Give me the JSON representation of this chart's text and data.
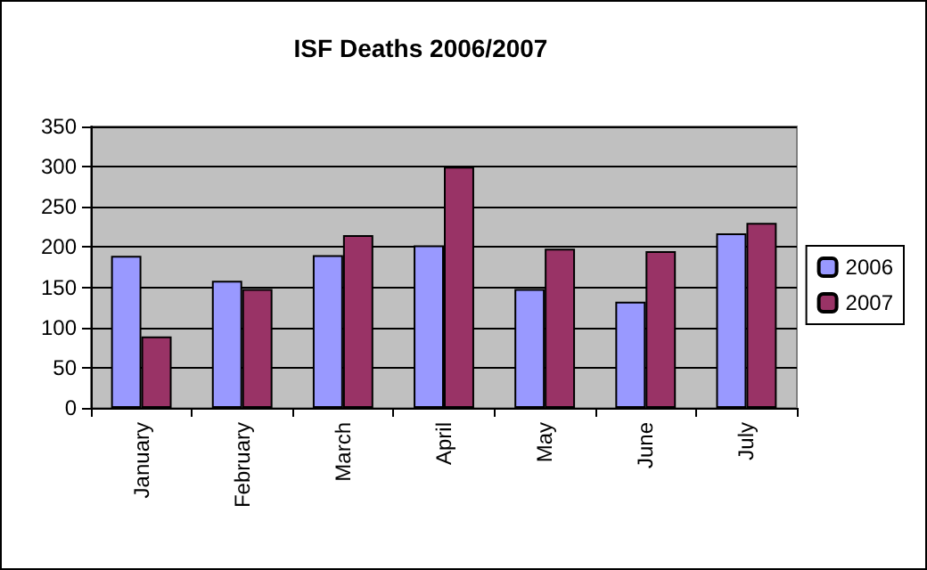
{
  "chart_data": {
    "type": "bar",
    "title": "ISF Deaths 2006/2007",
    "categories": [
      "January",
      "February",
      "March",
      "April",
      "May",
      "June",
      "July"
    ],
    "series": [
      {
        "name": "2006",
        "color": "#9999ff",
        "values": [
          189,
          158,
          190,
          202,
          148,
          132,
          217
        ]
      },
      {
        "name": "2007",
        "color": "#993366",
        "values": [
          89,
          148,
          215,
          300,
          198,
          195,
          230
        ]
      }
    ],
    "ylim": [
      0,
      350
    ],
    "yticks": [
      0,
      50,
      100,
      150,
      200,
      250,
      300,
      350
    ],
    "grid": "y",
    "legend": "right"
  }
}
